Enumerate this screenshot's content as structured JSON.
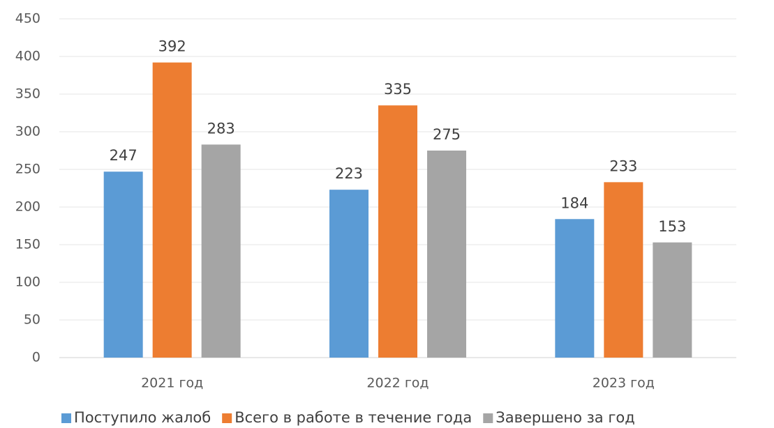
{
  "chart_data": {
    "type": "bar",
    "categories": [
      "2021 год",
      "2022 год",
      "2023 год"
    ],
    "series": [
      {
        "name": "Поступило жалоб",
        "color": "#5b9bd5",
        "values": [
          247,
          223,
          184
        ]
      },
      {
        "name": "Всего в работе в течение года",
        "color": "#ed7d31",
        "values": [
          392,
          335,
          233
        ]
      },
      {
        "name": "Завершено за год",
        "color": "#a5a5a5",
        "values": [
          283,
          275,
          153
        ]
      }
    ],
    "ylim": [
      0,
      450
    ],
    "yticks": [
      0,
      50,
      100,
      150,
      200,
      250,
      300,
      350,
      400,
      450
    ],
    "grid": true,
    "data_labels": true,
    "legend": "bottom"
  }
}
